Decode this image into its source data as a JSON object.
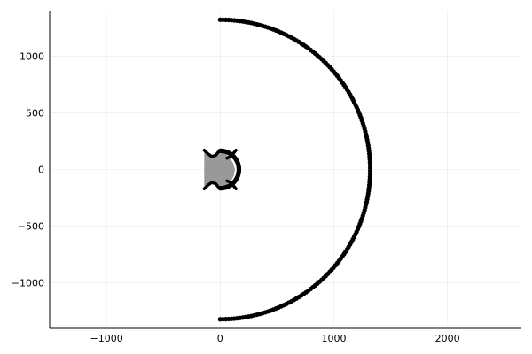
{
  "chart_data": {
    "type": "scatter",
    "title": "",
    "xlabel": "",
    "ylabel": "",
    "xlim": [
      -1500,
      2650
    ],
    "ylim": [
      -1400,
      1400
    ],
    "grid": true,
    "legend": "none",
    "xticks": [
      -1000,
      0,
      1000,
      2000
    ],
    "yticks": [
      -1000,
      -500,
      0,
      500,
      1000
    ],
    "xtick_labels": [
      "−1000",
      "0",
      "1000",
      "2000"
    ],
    "ytick_labels": [
      "−1000",
      "−500",
      "0",
      "500",
      "1000"
    ],
    "series": [
      {
        "kind": "semicircle-arc",
        "center": [
          0,
          0
        ],
        "radius": 1320,
        "theta_deg": [
          -90,
          90
        ],
        "color": "#000000"
      },
      {
        "kind": "semicircle-arc",
        "center": [
          0,
          0
        ],
        "radius": 165,
        "theta_deg": [
          -90,
          90
        ],
        "color": "#000000"
      },
      {
        "kind": "filled-region",
        "x": [
          -140,
          -120,
          -90,
          -60,
          -30,
          0,
          40,
          80,
          115,
          130,
          120,
          90,
          40,
          0,
          -30,
          -60,
          -90,
          -120,
          -140
        ],
        "y": [
          170,
          150,
          120,
          110,
          125,
          150,
          145,
          110,
          55,
          0,
          -55,
          -110,
          -145,
          -150,
          -125,
          -110,
          -120,
          -150,
          -170
        ],
        "color": "#999999"
      },
      {
        "kind": "curve",
        "x": [
          -140,
          -110,
          -75,
          -40,
          -15
        ],
        "y": [
          170,
          140,
          115,
          125,
          155
        ],
        "color": "#000000"
      },
      {
        "kind": "curve",
        "x": [
          -140,
          -110,
          -75,
          -40,
          -15
        ],
        "y": [
          -170,
          -140,
          -115,
          -125,
          -155
        ],
        "color": "#000000"
      },
      {
        "kind": "curve",
        "x": [
          140,
          115,
          85,
          60
        ],
        "y": [
          170,
          140,
          112,
          100
        ],
        "color": "#000000"
      },
      {
        "kind": "curve",
        "x": [
          140,
          115,
          85,
          60
        ],
        "y": [
          -170,
          -140,
          -112,
          -100
        ],
        "color": "#000000"
      }
    ]
  }
}
